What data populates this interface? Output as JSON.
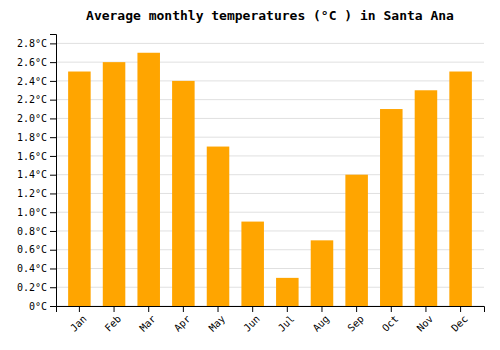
{
  "chart_data": {
    "type": "bar",
    "title": "Average monthly temperatures (°C ) in Santa Ana",
    "categories": [
      "Jan",
      "Feb",
      "Mar",
      "Apr",
      "May",
      "Jun",
      "Jul",
      "Aug",
      "Sep",
      "Oct",
      "Nov",
      "Dec"
    ],
    "values": [
      2.5,
      2.6,
      2.7,
      2.4,
      1.7,
      0.9,
      0.3,
      0.7,
      1.4,
      2.1,
      2.3,
      2.5
    ],
    "color": "#FFA500",
    "ylim": [
      0,
      2.9
    ],
    "yticks": [
      {
        "value": 0,
        "label": "0°C"
      },
      {
        "value": 0.2,
        "label": "0.2°C"
      },
      {
        "value": 0.4,
        "label": "0.4°C"
      },
      {
        "value": 0.6,
        "label": "0.6°C"
      },
      {
        "value": 0.8,
        "label": "0.8°C"
      },
      {
        "value": 1.0,
        "label": "1.0°C"
      },
      {
        "value": 1.2,
        "label": "1.2°C"
      },
      {
        "value": 1.4,
        "label": "1.4°C"
      },
      {
        "value": 1.6,
        "label": "1.6°C"
      },
      {
        "value": 1.8,
        "label": "1.8°C"
      },
      {
        "value": 2.0,
        "label": "2.0°C"
      },
      {
        "value": 2.2,
        "label": "2.2°C"
      },
      {
        "value": 2.4,
        "label": "2.4°C"
      },
      {
        "value": 2.6,
        "label": "2.6°C"
      },
      {
        "value": 2.8,
        "label": "2.8°C"
      }
    ],
    "grid": true
  }
}
